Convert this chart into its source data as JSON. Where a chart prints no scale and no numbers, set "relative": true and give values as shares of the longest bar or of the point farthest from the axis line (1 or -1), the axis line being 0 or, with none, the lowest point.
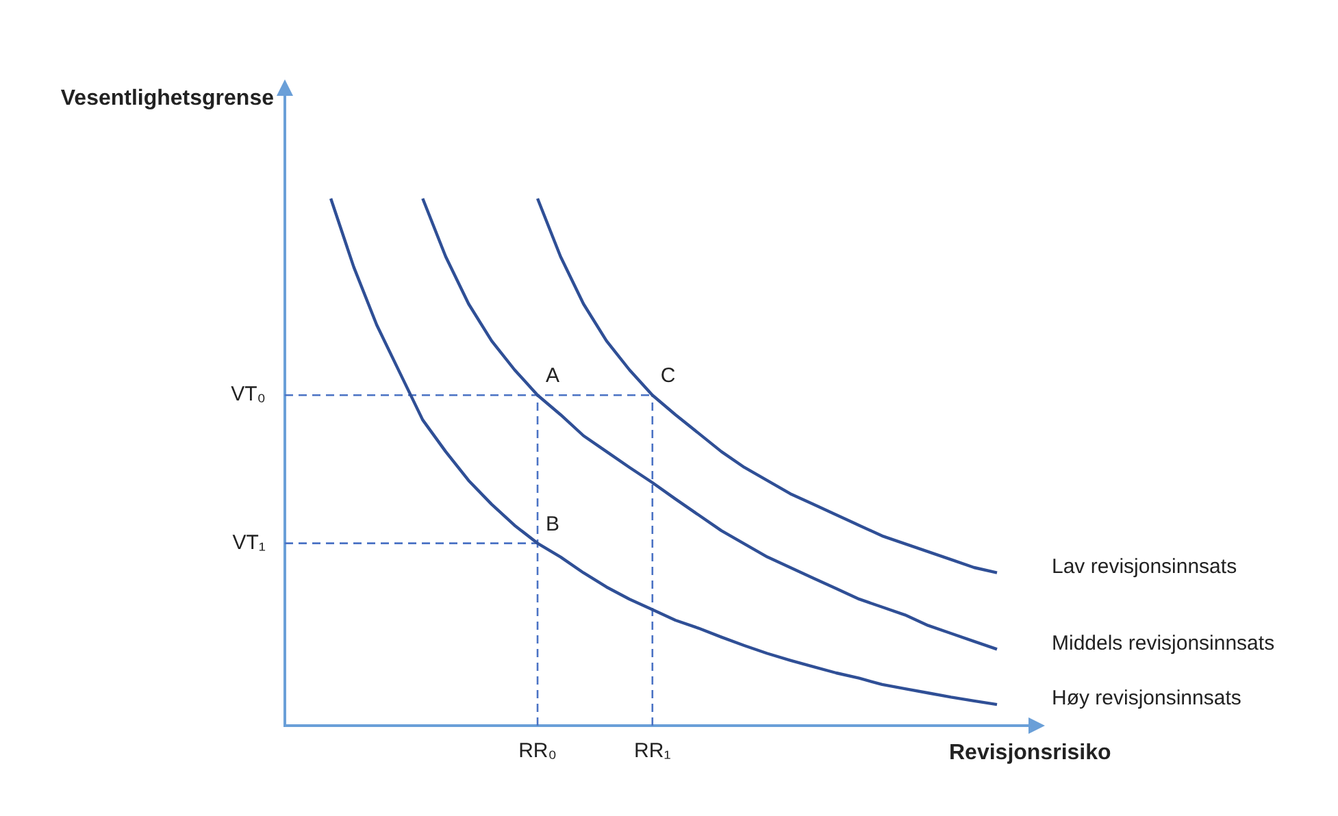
{
  "chart_data": {
    "type": "line",
    "xlabel": "Revisjonsrisiko",
    "ylabel": "Vesentlighetsgrense",
    "relative": true,
    "grid": false,
    "legend": false,
    "marker": "none",
    "line_style": "solid",
    "categories": [
      null,
      null,
      null,
      null,
      null,
      null,
      null,
      null,
      null,
      null,
      null,
      "RR₀",
      null,
      null,
      null,
      null,
      "RR₁",
      null,
      null,
      null,
      null,
      null,
      null,
      null,
      null,
      null,
      null,
      null,
      null,
      null,
      null,
      null
    ],
    "series": [
      {
        "name": "Høy revisjonsinnsats",
        "color": "#2f4f96",
        "values": [
          null,
          null,
          1.0,
          0.87,
          0.76,
          0.67,
          0.58,
          0.52,
          0.465,
          0.42,
          0.38,
          0.346,
          0.32,
          0.29,
          0.263,
          0.24,
          0.22,
          0.2,
          0.185,
          0.168,
          0.152,
          0.137,
          0.124,
          0.112,
          0.1,
          0.09,
          0.078,
          0.07,
          0.062,
          0.054,
          0.047,
          0.04
        ]
      },
      {
        "name": "Middels revisjonsinnsats",
        "color": "#2f4f96",
        "values": [
          null,
          null,
          null,
          null,
          null,
          null,
          1.0,
          0.89,
          0.8,
          0.73,
          0.675,
          0.627,
          0.59,
          0.55,
          0.52,
          0.49,
          0.461,
          0.43,
          0.4,
          0.37,
          0.345,
          0.32,
          0.3,
          0.28,
          0.26,
          0.24,
          0.225,
          0.21,
          0.19,
          0.175,
          0.16,
          0.145
        ]
      },
      {
        "name": "Lav revisjonsinnsats",
        "color": "#2f4f96",
        "values": [
          null,
          null,
          null,
          null,
          null,
          null,
          null,
          null,
          null,
          null,
          null,
          1.0,
          0.89,
          0.8,
          0.73,
          0.675,
          0.627,
          0.59,
          0.555,
          0.52,
          0.49,
          0.465,
          0.44,
          0.42,
          0.4,
          0.38,
          0.36,
          0.345,
          0.33,
          0.315,
          0.3,
          0.29
        ]
      }
    ],
    "ref_lines": [
      {
        "axis": "y",
        "value": 0.627,
        "label": "VT₀",
        "color": "#4a72c4",
        "line_style": "dashed"
      },
      {
        "axis": "y",
        "value": 0.346,
        "label": "VT₁",
        "color": "#4a72c4",
        "line_style": "dashed"
      },
      {
        "axis": "x",
        "value": "RR₀",
        "color": "#4a72c4",
        "line_style": "dashed"
      },
      {
        "axis": "x",
        "value": "RR₁",
        "color": "#4a72c4",
        "line_style": "dashed"
      }
    ],
    "annotations": [
      {
        "text": "A",
        "x": "RR₀",
        "y": 0.627
      },
      {
        "text": "B",
        "x": "RR₀",
        "y": 0.346
      },
      {
        "text": "C",
        "x": "RR₁",
        "y": 0.627
      }
    ]
  }
}
